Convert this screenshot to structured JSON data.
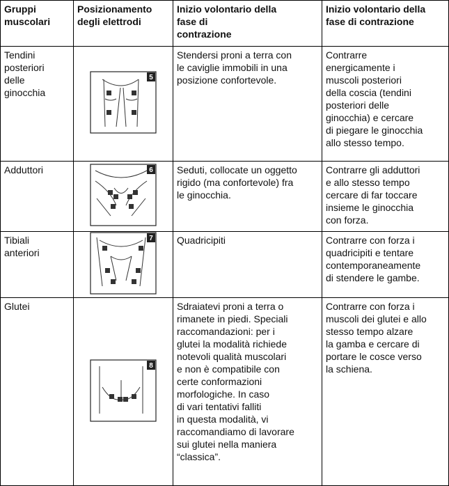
{
  "table": {
    "header": [
      [
        "Gruppi",
        "muscolari"
      ],
      [
        "Posizionamento",
        "degli elettrodi"
      ],
      [
        "Inizio volontario della",
        "fase di",
        "contrazione"
      ],
      [
        "Inizio volontario della",
        "fase di contrazione"
      ]
    ],
    "rows": [
      {
        "group": [
          "Tendini",
          "posteriori",
          "delle",
          "ginocchia"
        ],
        "figure": "5",
        "start": [
          "Stendersi proni a terra con",
          "le caviglie immobili in una",
          "posizione confortevole."
        ],
        "contraction": [
          "Contrarre",
          "energicamente i",
          "muscoli posteriori",
          "della coscia (tendini",
          "posteriori delle",
          "ginocchia) e cercare",
          "di piegare le ginocchia",
          "allo stesso tempo."
        ]
      },
      {
        "group": [
          "Adduttori"
        ],
        "figure": "6",
        "start": [
          "Seduti, collocate un oggetto",
          "rigido (ma confortevole) fra",
          "le ginocchia."
        ],
        "contraction": [
          "Contrarre gli adduttori",
          "e allo stesso tempo",
          "cercare di far toccare",
          "insieme le ginocchia",
          "con forza."
        ]
      },
      {
        "group": [
          "Tibiali",
          "anteriori"
        ],
        "figure": "7",
        "start": [
          "Quadricipiti"
        ],
        "contraction": [
          "Contrarre con forza i",
          "quadricipiti e tentare",
          "contemporaneamente",
          "di stendere le gambe."
        ]
      },
      {
        "group": [
          "Glutei"
        ],
        "figure": "8",
        "start": [
          "Sdraiatevi proni a terra o",
          "rimanete in piedi. Speciali",
          "raccomandazioni: per i",
          "glutei la modalità richiede",
          "notevoli qualità muscolari",
          "e non è compatibile con",
          "certe conformazioni",
          "morfologiche. In caso",
          "di vari tentativi falliti",
          "in questa modalità, vi",
          "raccomandiamo di lavorare",
          "sui glutei nella maniera",
          "“classica”."
        ],
        "contraction": [
          "Contrarre con forza i",
          "muscoli dei glutei e allo",
          "stesso tempo alzare",
          "la gamba e cercare di",
          "portare le cosce verso",
          "la schiena."
        ]
      }
    ]
  }
}
